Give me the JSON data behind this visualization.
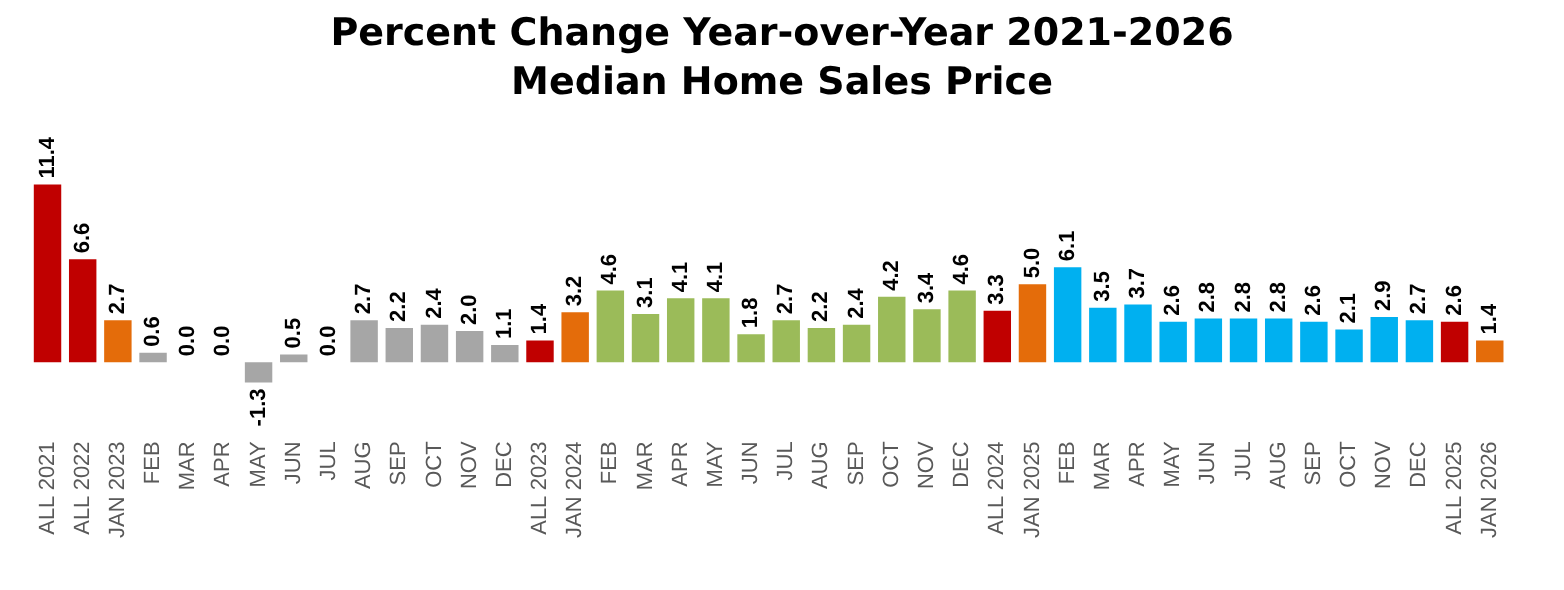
{
  "chart_data": {
    "type": "bar",
    "title": "Percent Change Year-over-Year 2021-2026",
    "subtitle": "Median Home Sales Price",
    "categories": [
      "ALL 2021",
      "ALL 2022",
      "JAN 2023",
      "FEB",
      "MAR",
      "APR",
      "MAY",
      "JUN",
      "JUL",
      "AUG",
      "SEP",
      "OCT",
      "NOV",
      "DEC",
      "ALL 2023",
      "JAN 2024",
      "FEB",
      "MAR",
      "APR",
      "MAY",
      "JUN",
      "JUL",
      "AUG",
      "SEP",
      "OCT",
      "NOV",
      "DEC",
      "ALL 2024",
      "JAN 2025",
      "FEB",
      "MAR",
      "APR",
      "MAY",
      "JUN",
      "JUL",
      "AUG",
      "SEP",
      "OCT",
      "NOV",
      "DEC",
      "ALL 2025",
      "JAN 2026"
    ],
    "values": [
      11.4,
      6.6,
      2.7,
      0.6,
      0,
      0,
      -1.3,
      0.5,
      0,
      2.7,
      2.2,
      2.4,
      2.0,
      1.1,
      1.4,
      3.2,
      4.6,
      3.1,
      4.1,
      4.1,
      1.8,
      2.7,
      2.2,
      2.4,
      4.2,
      3.4,
      4.6,
      3.3,
      5.0,
      6.1,
      3.5,
      3.7,
      2.6,
      2.8,
      2.8,
      2.8,
      2.6,
      2.1,
      2.9,
      2.7,
      2.6,
      1.4
    ],
    "value_labels": [
      "11.4",
      "6.6",
      "2.7",
      "0.6",
      "0.0",
      "0.0",
      "-1.3",
      "0.5",
      "0.0",
      "2.7",
      "2.2",
      "2.4",
      "2.0",
      "1.1",
      "1.4",
      "3.2",
      "4.6",
      "3.1",
      "4.1",
      "4.1",
      "1.8",
      "2.7",
      "2.2",
      "2.4",
      "4.2",
      "3.4",
      "4.6",
      "3.3",
      "5.0",
      "6.1",
      "3.5",
      "3.7",
      "2.6",
      "2.8",
      "2.8",
      "2.8",
      "2.6",
      "2.1",
      "2.9",
      "2.7",
      "2.6",
      "1.4"
    ],
    "colors": [
      "#c00000",
      "#c00000",
      "#e46c0a",
      "#a6a6a6",
      "#a6a6a6",
      "#a6a6a6",
      "#a6a6a6",
      "#a6a6a6",
      "#a6a6a6",
      "#a6a6a6",
      "#a6a6a6",
      "#a6a6a6",
      "#a6a6a6",
      "#a6a6a6",
      "#c00000",
      "#e46c0a",
      "#9bbb59",
      "#9bbb59",
      "#9bbb59",
      "#9bbb59",
      "#9bbb59",
      "#9bbb59",
      "#9bbb59",
      "#9bbb59",
      "#9bbb59",
      "#9bbb59",
      "#9bbb59",
      "#c00000",
      "#e46c0a",
      "#00b0f0",
      "#00b0f0",
      "#00b0f0",
      "#00b0f0",
      "#00b0f0",
      "#00b0f0",
      "#00b0f0",
      "#00b0f0",
      "#00b0f0",
      "#00b0f0",
      "#00b0f0",
      "#c00000",
      "#e46c0a"
    ],
    "grid": false,
    "legend": false
  }
}
